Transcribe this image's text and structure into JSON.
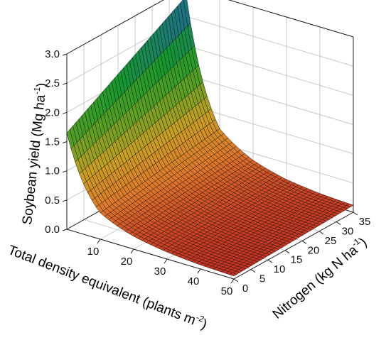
{
  "chart_data": {
    "type": "surface3d",
    "title": "",
    "zlabel": "Soybean yield (Mg ha",
    "zlabel_sup": "-1",
    "zlabel_end": ")",
    "xlabel": "Total density equivalent (plants m",
    "xlabel_sup": "-2",
    "xlabel_end": ")",
    "ylabel": "Nitrogen (kg N ha",
    "ylabel_sup": "-1",
    "ylabel_end": ")",
    "x_ticks": [
      "10",
      "20",
      "30",
      "40",
      "50"
    ],
    "y_ticks": [
      "0",
      "5",
      "10",
      "15",
      "20",
      "25",
      "30",
      "35"
    ],
    "z_ticks": [
      "0.0",
      "0.5",
      "1.0",
      "1.5",
      "2.0",
      "2.5",
      "3.0"
    ],
    "xlim": [
      0,
      50
    ],
    "ylim": [
      0,
      35
    ],
    "zlim": [
      0,
      3.0
    ],
    "grid": true,
    "colormap": [
      "#c8281e",
      "#e07a2a",
      "#c8a020",
      "#5aa020",
      "#129a2c",
      "#1a7878",
      "#1a6aa8"
    ],
    "surface_corners": {
      "x0_y0": 1.65,
      "x0_y35": 2.85,
      "x50_y0": 0.05,
      "x50_y35": 0.12
    },
    "surface_samples": {
      "x": [
        0,
        10,
        20,
        30,
        40,
        50
      ],
      "y0": [
        1.65,
        0.45,
        0.22,
        0.12,
        0.07,
        0.05
      ],
      "y35": [
        2.85,
        0.75,
        0.38,
        0.22,
        0.15,
        0.12
      ]
    }
  }
}
